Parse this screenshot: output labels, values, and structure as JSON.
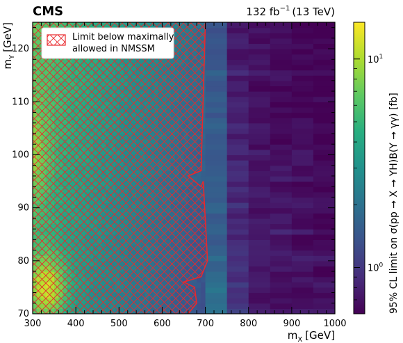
{
  "chart_data": {
    "type": "heatmap",
    "experiment": "CMS",
    "lumi_label": "132 fb",
    "lumi_exponent": "−1",
    "energy_label": "(13 TeV)",
    "xlabel_main": "m",
    "xlabel_sub": "X",
    "xlabel_unit": "[GeV]",
    "ylabel_main": "m",
    "ylabel_sub": "Y",
    "ylabel_unit": "[GeV]",
    "zlabel": "95% CL limit on σ(pp → X → YH)B(Y → γγ) [fb]",
    "xlim": [
      300,
      1000
    ],
    "ylim": [
      70,
      125
    ],
    "x_ticks": [
      300,
      400,
      500,
      600,
      700,
      800,
      900,
      1000
    ],
    "y_ticks": [
      70,
      80,
      90,
      100,
      110,
      120
    ],
    "z_scale": "log",
    "zlim": [
      0.6,
      15
    ],
    "z_ticks": [
      {
        "value": 1,
        "base": "10",
        "exp": "0"
      },
      {
        "value": 10,
        "base": "10",
        "exp": "1"
      }
    ],
    "colormap": "viridis",
    "legend": {
      "label_line1": "Limit below maximally",
      "label_line2": "allowed in NMSSM",
      "placement": "top-left"
    },
    "excluded_region": {
      "color": "#e8282c",
      "x_edge": [
        [
          70,
          660
        ],
        [
          72,
          680
        ],
        [
          75,
          675
        ],
        [
          76,
          650
        ],
        [
          77,
          690
        ],
        [
          80,
          705
        ],
        [
          95,
          695
        ],
        [
          94,
          690
        ],
        [
          96,
          660
        ],
        [
          97,
          690
        ],
        [
          125,
          700
        ]
      ]
    },
    "x_bins": [
      300,
      310,
      320,
      330,
      340,
      350,
      360,
      370,
      380,
      390,
      400,
      410,
      420,
      430,
      440,
      450,
      460,
      470,
      480,
      490,
      500,
      510,
      520,
      530,
      540,
      550,
      560,
      570,
      580,
      590,
      600,
      610,
      620,
      630,
      640,
      650,
      660,
      670,
      680,
      690,
      700,
      750,
      800,
      850,
      900,
      950,
      1000
    ],
    "y_bins": [
      70,
      71,
      72,
      73,
      74,
      75,
      76,
      77,
      78,
      79,
      80,
      81,
      82,
      83,
      84,
      85,
      86,
      87,
      88,
      89,
      90,
      91,
      92,
      93,
      94,
      95,
      96,
      97,
      98,
      99,
      100,
      101,
      102,
      103,
      104,
      105,
      106,
      107,
      108,
      109,
      110,
      111,
      112,
      113,
      114,
      115,
      116,
      117,
      118,
      119,
      120,
      121,
      122,
      123,
      124,
      125
    ],
    "limit_model": {
      "description_values": [
        {
          "mx": 330,
          "my": 75,
          "limit": 15
        },
        {
          "mx": 300,
          "my": 100,
          "limit": 7
        },
        {
          "mx": 300,
          "my": 120,
          "limit": 5
        },
        {
          "mx": 500,
          "my": 95,
          "limit": 2.5
        },
        {
          "mx": 650,
          "my": 100,
          "limit": 1.6
        },
        {
          "mx": 725,
          "my": 75,
          "limit": 2.0
        },
        {
          "mx": 725,
          "my": 110,
          "limit": 1.3
        },
        {
          "mx": 825,
          "my": 100,
          "limit": 0.8
        },
        {
          "mx": 975,
          "my": 110,
          "limit": 0.65
        }
      ]
    }
  }
}
